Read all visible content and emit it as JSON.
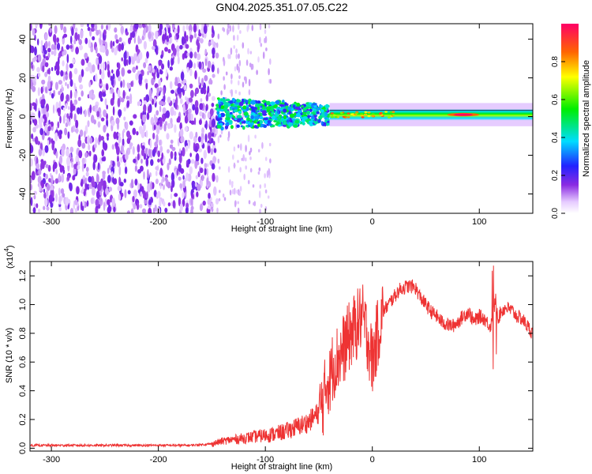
{
  "title": "GN04.2025.351.07.05.C22",
  "chart_data": [
    {
      "type": "heatmap",
      "title": "GN04.2025.351.07.05.C22",
      "xlabel": "Height of straight line (km)",
      "ylabel": "Frequency (Hz)",
      "xlim": [
        -320,
        150
      ],
      "ylim": [
        -50,
        48
      ],
      "xticks": [
        -300,
        -200,
        -100,
        0,
        100
      ],
      "yticks": [
        -40,
        -20,
        0,
        20,
        40
      ],
      "colorbar": {
        "label": "Normalized spectral amplitude",
        "range": [
          0,
          1
        ],
        "ticks": [
          "0.0",
          "0.2",
          "0.4",
          "0.6",
          "0.8"
        ],
        "tick_values": [
          0,
          0.2,
          0.4,
          0.6,
          0.8
        ]
      },
      "description_regions": [
        {
          "x_range": [
            -320,
            -145
          ],
          "freq_range": [
            -50,
            48
          ],
          "amplitude": "low noise (0.05-0.2)"
        },
        {
          "x_range": [
            -145,
            -40
          ],
          "freq_range": [
            -8,
            9
          ],
          "amplitude": "0.2-0.5 band"
        },
        {
          "x_range": [
            -40,
            150
          ],
          "freq_range": [
            -2,
            4
          ],
          "amplitude": "0.4-1.0 narrow band, peak near x=70-100"
        }
      ]
    },
    {
      "type": "line",
      "xlabel": "Height of straight line (km)",
      "ylabel": "SNR (10 * v/v)",
      "y_multiplier": "(x10",
      "y_multiplier_exp": "4",
      "y_multiplier_close": ")",
      "xlim": [
        -320,
        150
      ],
      "ylim": [
        -0.02,
        1.3
      ],
      "xticks": [
        -300,
        -200,
        -100,
        0,
        100
      ],
      "yticks": [
        "0.0",
        "0.2",
        "0.4",
        "0.6",
        "0.8",
        "1.0",
        "1.2"
      ],
      "ytick_values": [
        0,
        0.2,
        0.4,
        0.6,
        0.8,
        1.0,
        1.2
      ],
      "color": "#ee3333",
      "series": [
        {
          "name": "SNR",
          "x": [
            -320,
            -300,
            -250,
            -200,
            -170,
            -150,
            -140,
            -130,
            -120,
            -110,
            -100,
            -90,
            -80,
            -70,
            -60,
            -50,
            -45,
            -42,
            -40,
            -38,
            -35,
            -30,
            -25,
            -20,
            -15,
            -10,
            -5,
            0,
            5,
            10,
            15,
            20,
            25,
            30,
            35,
            40,
            45,
            50,
            55,
            60,
            65,
            70,
            75,
            80,
            85,
            90,
            95,
            100,
            105,
            110,
            113,
            115,
            118,
            120,
            125,
            130,
            135,
            140,
            145,
            150
          ],
          "y": [
            0.02,
            0.02,
            0.02,
            0.02,
            0.02,
            0.03,
            0.05,
            0.06,
            0.07,
            0.08,
            0.09,
            0.1,
            0.12,
            0.15,
            0.18,
            0.25,
            0.35,
            0.5,
            0.45,
            0.55,
            0.6,
            0.65,
            0.72,
            0.8,
            0.85,
            0.92,
            0.8,
            0.6,
            0.8,
            0.95,
            1.0,
            1.05,
            1.1,
            1.12,
            1.13,
            1.12,
            1.05,
            1.0,
            0.95,
            0.92,
            0.88,
            0.86,
            0.85,
            0.88,
            0.92,
            0.95,
            0.88,
            0.92,
            0.9,
            0.85,
            0.9,
            1.05,
            0.9,
            0.95,
            0.98,
            0.96,
            0.92,
            0.9,
            0.85,
            0.8
          ]
        }
      ]
    }
  ]
}
